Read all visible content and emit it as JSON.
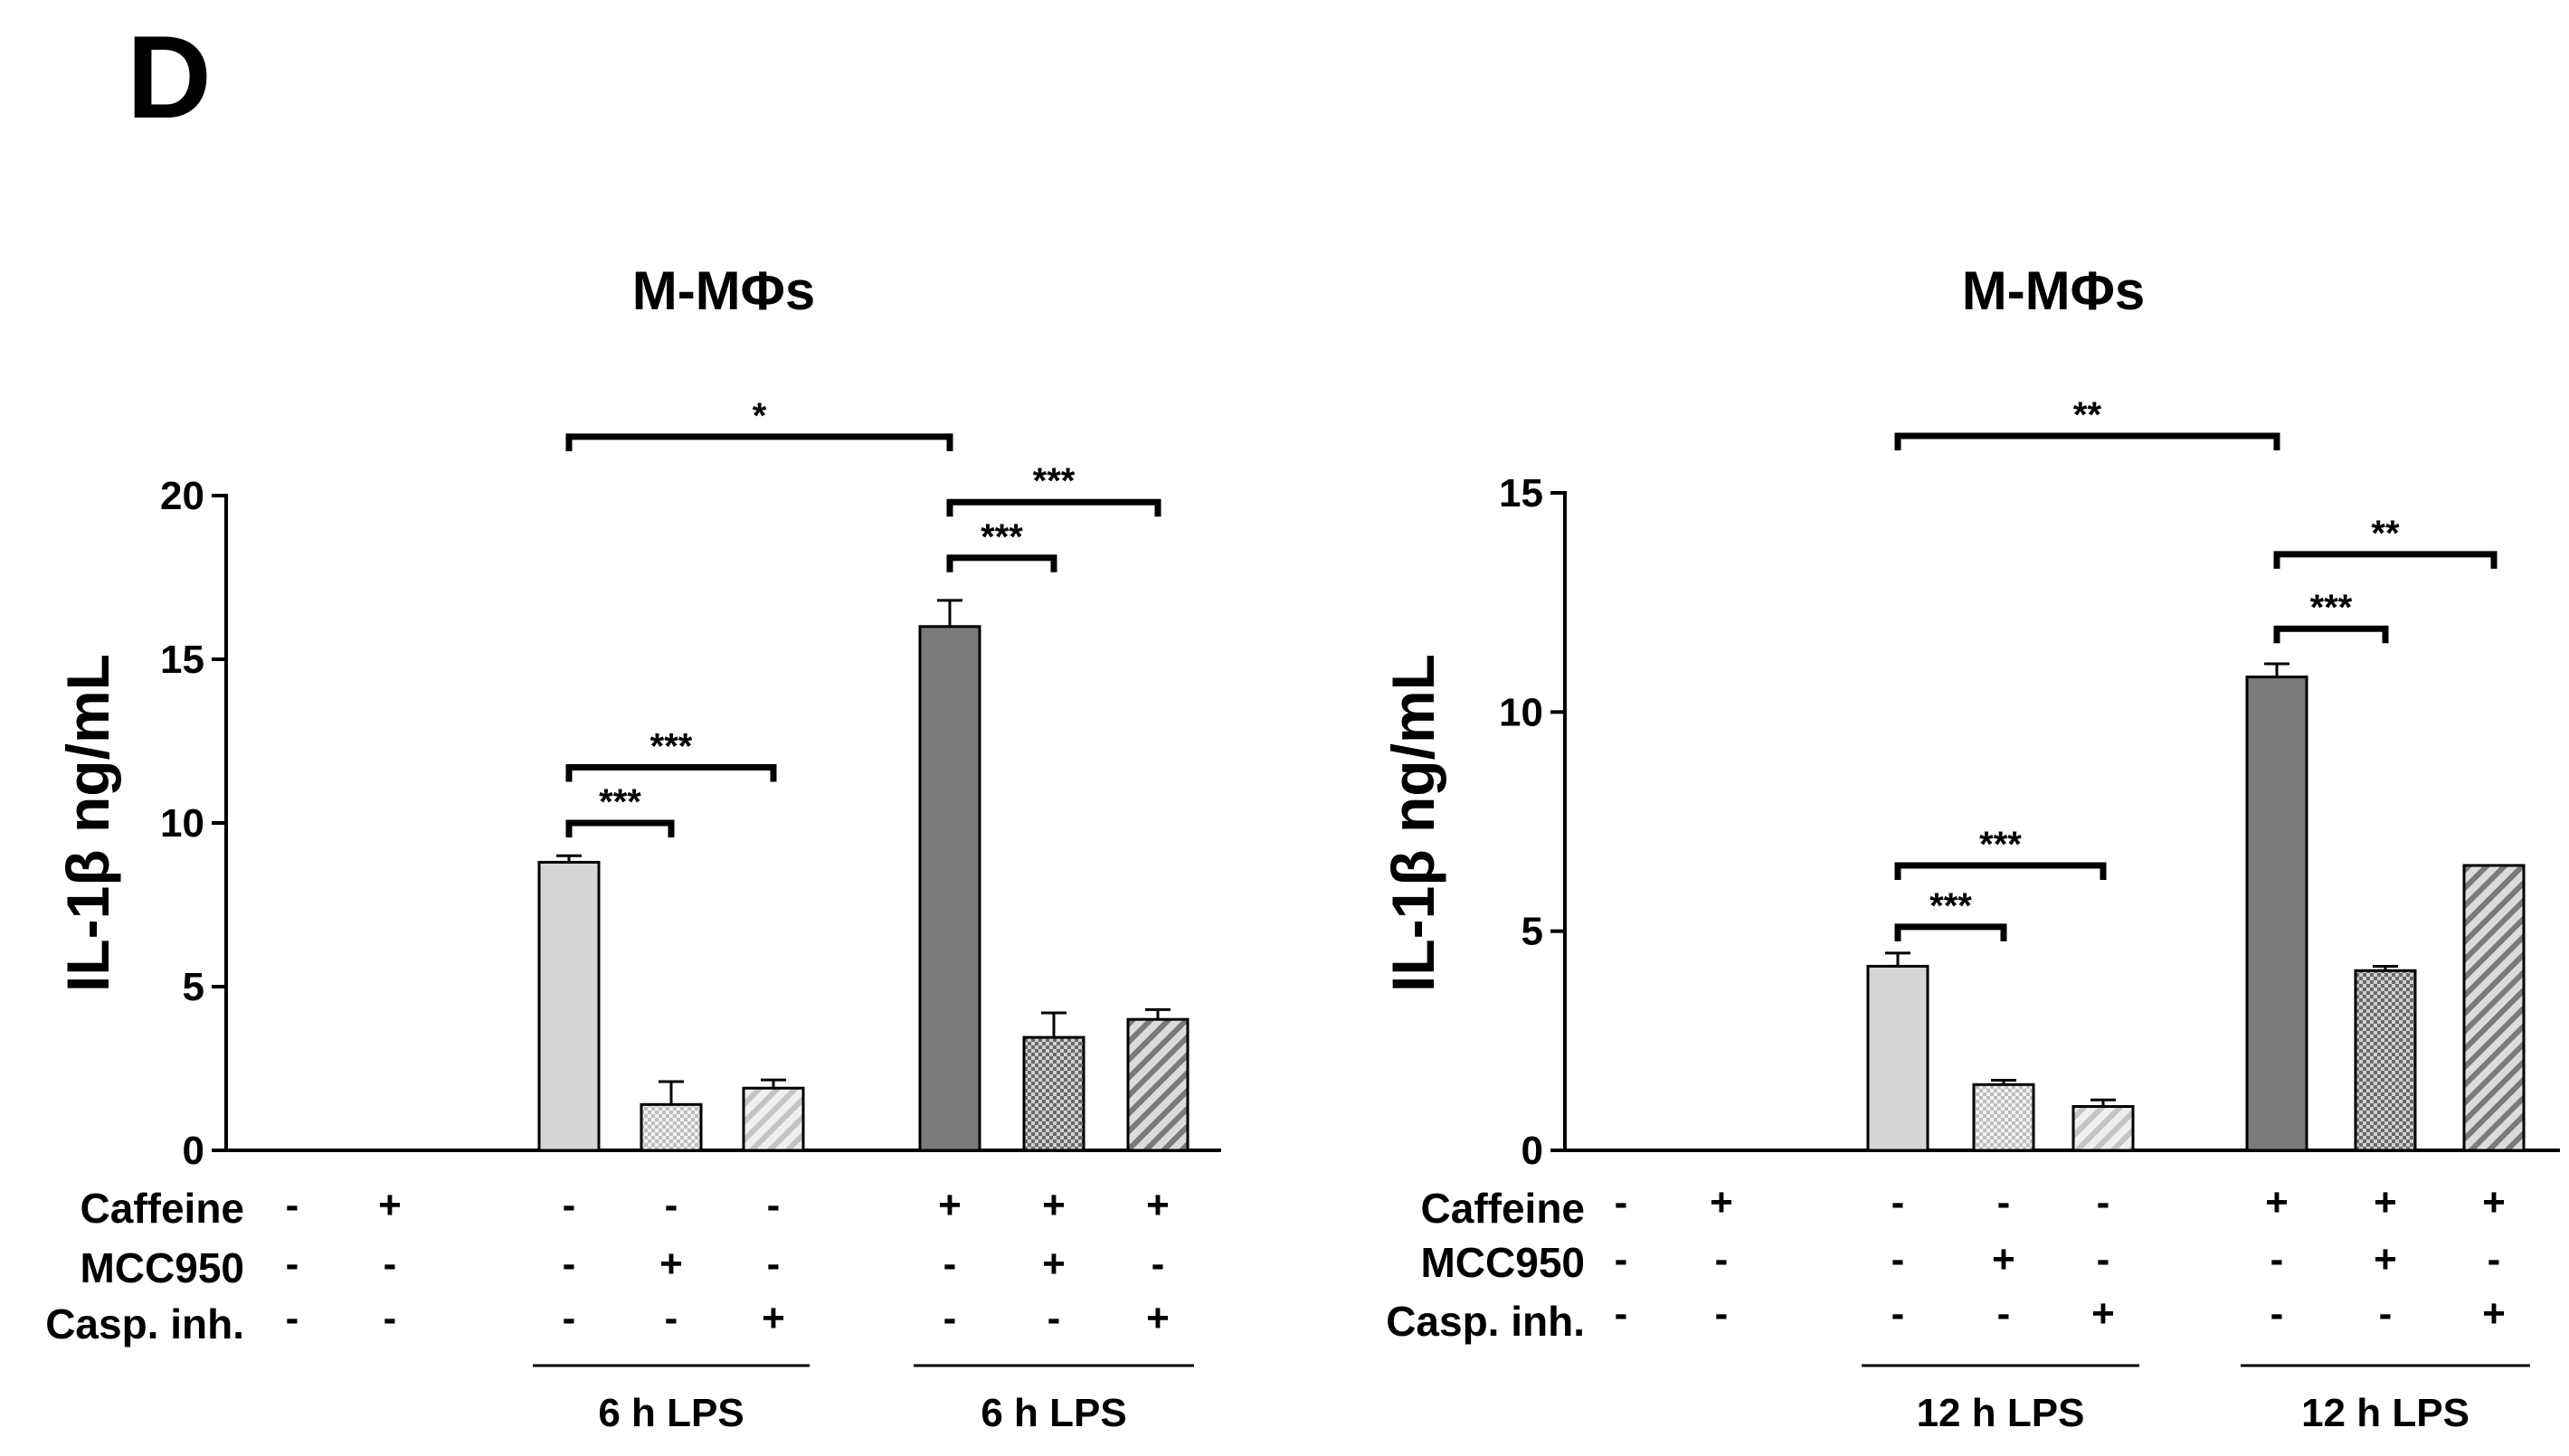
{
  "panel_label": "D",
  "colors": {
    "light": "#d6d6d6",
    "dark": "#7a7a7a",
    "line": "#000000"
  },
  "chart_data": [
    {
      "type": "bar",
      "title": "M-MΦs",
      "ylabel": "IL-1β ng/mL",
      "xlabel": "",
      "ylim": [
        0,
        20
      ],
      "yticks": [
        0,
        5,
        10,
        15,
        20
      ],
      "row_labels": [
        "Caffeine",
        "MCC950",
        "Casp. inh."
      ],
      "bars": [
        {
          "value": 0,
          "error": 0,
          "fill": "none",
          "caffeine": "-",
          "mcc950": "-",
          "casp": "-"
        },
        {
          "value": 0,
          "error": 0,
          "fill": "none",
          "caffeine": "+",
          "mcc950": "-",
          "casp": "-"
        },
        {
          "value": 8.8,
          "error": 0.2,
          "fill": "light-solid",
          "caffeine": "-",
          "mcc950": "-",
          "casp": "-"
        },
        {
          "value": 1.4,
          "error": 0.7,
          "fill": "light-check",
          "caffeine": "-",
          "mcc950": "+",
          "casp": "-"
        },
        {
          "value": 1.9,
          "error": 0.25,
          "fill": "light-hatch",
          "caffeine": "-",
          "mcc950": "-",
          "casp": "+"
        },
        {
          "value": 16.0,
          "error": 0.8,
          "fill": "dark-solid",
          "caffeine": "+",
          "mcc950": "-",
          "casp": "-"
        },
        {
          "value": 3.45,
          "error": 0.75,
          "fill": "dark-check",
          "caffeine": "+",
          "mcc950": "+",
          "casp": "-"
        },
        {
          "value": 4.0,
          "error": 0.3,
          "fill": "dark-hatch",
          "caffeine": "+",
          "mcc950": "-",
          "casp": "+"
        }
      ],
      "group_labels": [
        {
          "label": "6 h LPS",
          "from": 2,
          "to": 4
        },
        {
          "label": "6 h LPS",
          "from": 5,
          "to": 7
        }
      ],
      "significance": [
        {
          "from": 2,
          "to": 3,
          "label": "***",
          "y": 10.0
        },
        {
          "from": 2,
          "to": 4,
          "label": "***",
          "y": 11.7
        },
        {
          "from": 2,
          "to": 5,
          "label": "*",
          "y": 21.8
        },
        {
          "from": 5,
          "to": 6,
          "label": "***",
          "y": 18.1
        },
        {
          "from": 5,
          "to": 7,
          "label": "***",
          "y": 19.8
        }
      ]
    },
    {
      "type": "bar",
      "title": "M-MΦs",
      "ylabel": "IL-1β ng/mL",
      "xlabel": "",
      "ylim": [
        0,
        15
      ],
      "yticks": [
        0,
        5,
        10,
        15
      ],
      "row_labels": [
        "Caffeine",
        "MCC950",
        "Casp. inh."
      ],
      "bars": [
        {
          "value": 0,
          "error": 0,
          "fill": "none",
          "caffeine": "-",
          "mcc950": "-",
          "casp": "-"
        },
        {
          "value": 0,
          "error": 0,
          "fill": "none",
          "caffeine": "+",
          "mcc950": "-",
          "casp": "-"
        },
        {
          "value": 4.2,
          "error": 0.3,
          "fill": "light-solid",
          "caffeine": "-",
          "mcc950": "-",
          "casp": "-"
        },
        {
          "value": 1.5,
          "error": 0.1,
          "fill": "light-check",
          "caffeine": "-",
          "mcc950": "+",
          "casp": "-"
        },
        {
          "value": 1.0,
          "error": 0.15,
          "fill": "light-hatch",
          "caffeine": "-",
          "mcc950": "-",
          "casp": "+"
        },
        {
          "value": 10.8,
          "error": 0.3,
          "fill": "dark-solid",
          "caffeine": "+",
          "mcc950": "-",
          "casp": "-"
        },
        {
          "value": 4.1,
          "error": 0.1,
          "fill": "dark-check",
          "caffeine": "+",
          "mcc950": "+",
          "casp": "-"
        },
        {
          "value": 6.5,
          "error": 0.0,
          "fill": "dark-hatch",
          "caffeine": "+",
          "mcc950": "-",
          "casp": "+"
        }
      ],
      "group_labels": [
        {
          "label": "12 h LPS",
          "from": 2,
          "to": 4
        },
        {
          "label": "12 h LPS",
          "from": 5,
          "to": 7
        }
      ],
      "significance": [
        {
          "from": 2,
          "to": 3,
          "label": "***",
          "y": 5.1
        },
        {
          "from": 2,
          "to": 4,
          "label": "***",
          "y": 6.5
        },
        {
          "from": 2,
          "to": 5,
          "label": "**",
          "y": 16.3
        },
        {
          "from": 5,
          "to": 6,
          "label": "***",
          "y": 11.9
        },
        {
          "from": 5,
          "to": 7,
          "label": "**",
          "y": 13.6
        }
      ]
    }
  ]
}
